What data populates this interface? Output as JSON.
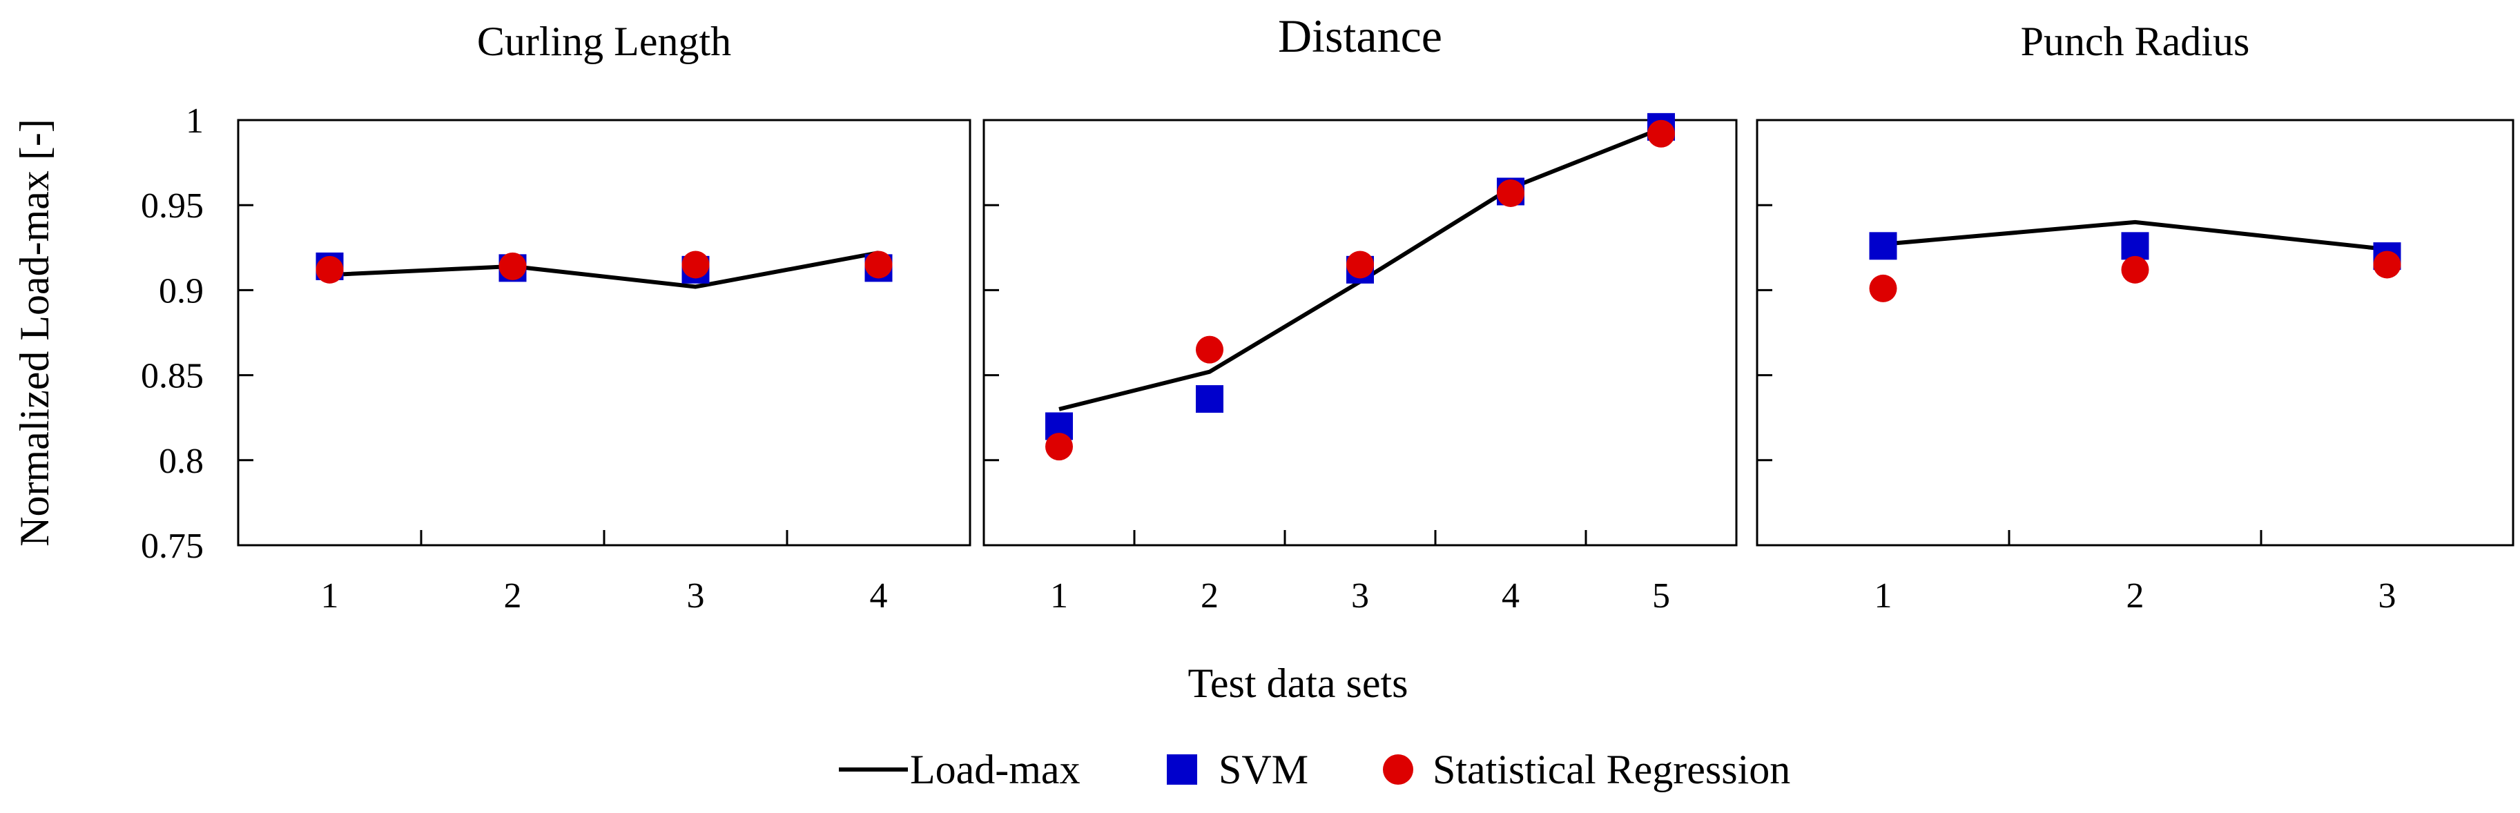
{
  "chart_data": {
    "type": "scatter",
    "ylabel": "Normalized Load-max [-]",
    "xlabel": "Test data sets",
    "ylim": [
      0.75,
      1.0
    ],
    "yticks": [
      "0.75",
      "0.8",
      "0.85",
      "0.9",
      "0.95",
      "1"
    ],
    "yticks_values": [
      0.75,
      0.8,
      0.85,
      0.9,
      0.95,
      1.0
    ],
    "colors": {
      "load_max": "#000000",
      "svm": "#0000cc",
      "regression": "#dd0000"
    },
    "legend": {
      "placement": "bottom-center",
      "entries": [
        "Load-max",
        "SVM",
        "Statistical Regression"
      ]
    },
    "panels": [
      {
        "title": "Curling Length",
        "categories": [
          "1",
          "2",
          "3",
          "4"
        ],
        "series": [
          {
            "name": "Load-max",
            "kind": "line",
            "values": [
              0.909,
              0.914,
              0.902,
              0.922
            ]
          },
          {
            "name": "SVM",
            "kind": "square",
            "values": [
              0.914,
              0.913,
              0.912,
              0.913
            ]
          },
          {
            "name": "Statistical Regression",
            "kind": "circle",
            "values": [
              0.912,
              0.914,
              0.915,
              0.915
            ]
          }
        ]
      },
      {
        "title": "Distance",
        "categories": [
          "1",
          "2",
          "3",
          "4",
          "5"
        ],
        "series": [
          {
            "name": "Load-max",
            "kind": "line",
            "values": [
              0.83,
              0.852,
              0.905,
              0.96,
              0.995
            ]
          },
          {
            "name": "SVM",
            "kind": "square",
            "values": [
              0.82,
              0.836,
              0.912,
              0.958,
              0.996
            ]
          },
          {
            "name": "Statistical Regression",
            "kind": "circle",
            "values": [
              0.808,
              0.865,
              0.915,
              0.957,
              0.992
            ]
          }
        ]
      },
      {
        "title": "Punch Radius",
        "categories": [
          "1",
          "2",
          "3"
        ],
        "series": [
          {
            "name": "Load-max",
            "kind": "line",
            "values": [
              0.927,
              0.94,
              0.924
            ]
          },
          {
            "name": "SVM",
            "kind": "square",
            "values": [
              0.926,
              0.926,
              0.92
            ]
          },
          {
            "name": "Statistical Regression",
            "kind": "circle",
            "values": [
              0.901,
              0.912,
              0.915
            ]
          }
        ]
      }
    ]
  }
}
